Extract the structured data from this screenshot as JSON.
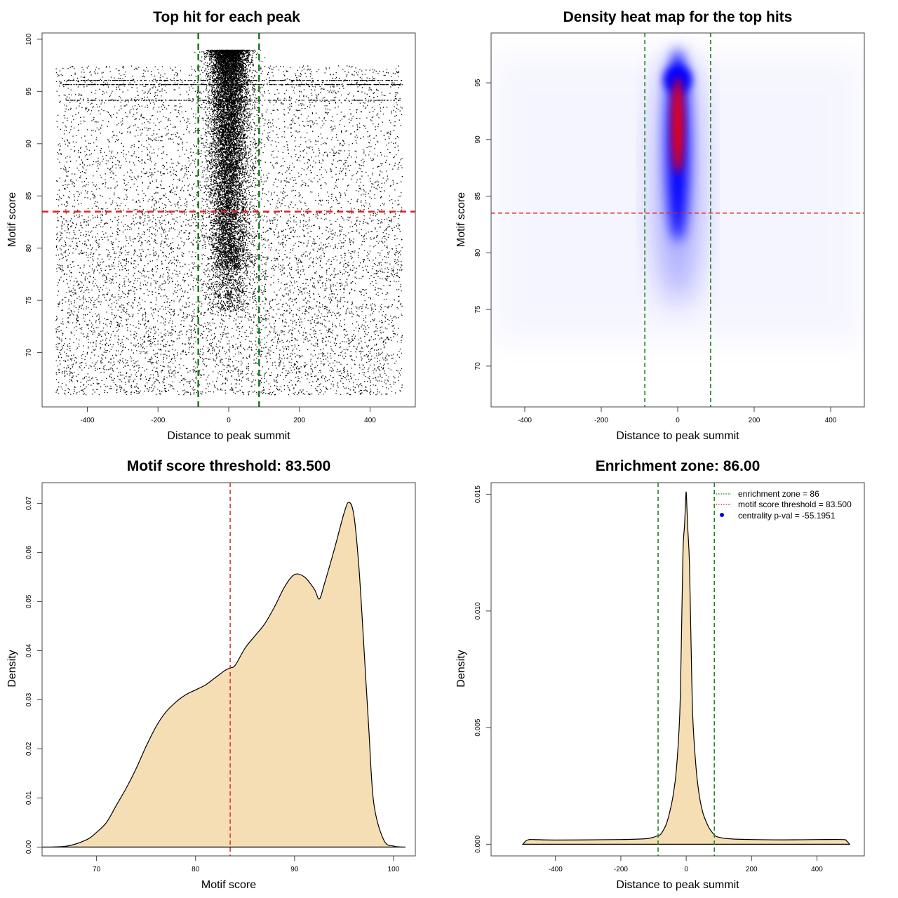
{
  "chart_data": [
    {
      "id": "scatter",
      "type": "scatter",
      "title": "Top hit for each peak",
      "xlabel": "Distance to peak summit",
      "ylabel": "Motif score",
      "xlim": [
        -528,
        528
      ],
      "ylim": [
        64.8,
        100.6
      ],
      "xticks": [
        -400,
        -200,
        0,
        200,
        400
      ],
      "yticks": [
        70,
        75,
        80,
        85,
        90,
        95,
        100
      ],
      "vlines": [
        {
          "x": -86,
          "color": "#1a7a1a"
        },
        {
          "x": 86,
          "color": "#1a7a1a"
        }
      ],
      "hlines": [
        {
          "y": 83.5,
          "color": "#dd2222"
        }
      ],
      "point_groups": [
        {
          "name": "central enriched hits",
          "x_mean": 0,
          "x_sd": 28,
          "y_min": 74,
          "y_max": 99,
          "n": 11000
        },
        {
          "name": "background above threshold",
          "x_range": [
            -490,
            490
          ],
          "y_range": [
            83.5,
            97.5
          ],
          "n": 3000
        },
        {
          "name": "background below threshold",
          "x_range": [
            -490,
            490
          ],
          "y_range": [
            66,
            83.5
          ],
          "n": 5500
        },
        {
          "name": "score band 95.7",
          "x_range": [
            -470,
            490
          ],
          "y": 95.7,
          "n": 500
        },
        {
          "name": "score band 96.1",
          "x_range": [
            -470,
            490
          ],
          "y": 96.1,
          "n": 300
        },
        {
          "name": "score band 94.2",
          "x_range": [
            -470,
            490
          ],
          "y": 94.2,
          "n": 250
        }
      ]
    },
    {
      "id": "heatmap",
      "type": "heatmap",
      "title": "Density heat map for the top hits",
      "xlabel": "Distance to peak summit",
      "ylabel": "Motif score",
      "xlim": [
        -488,
        488
      ],
      "ylim": [
        66.4,
        99.4
      ],
      "xticks": [
        -400,
        -200,
        0,
        200,
        400
      ],
      "yticks": [
        70,
        75,
        80,
        85,
        90,
        95
      ],
      "vlines": [
        {
          "x": -86,
          "color": "#1a7a1a"
        },
        {
          "x": 86,
          "color": "#1a7a1a"
        }
      ],
      "hlines": [
        {
          "y": 83.5,
          "color": "#dd2222"
        }
      ],
      "colormap": [
        "#ffffff",
        "#0000ff",
        "#ff0000"
      ],
      "density_peak": {
        "x": 0,
        "y_min": 76,
        "y_max": 97,
        "y_core": [
          87,
          95.5
        ]
      }
    },
    {
      "id": "score-density",
      "type": "area",
      "title": "Motif score threshold: 83.500",
      "xlabel": "Motif score",
      "ylabel": "Density",
      "xlim": [
        64.5,
        102.2
      ],
      "ylim": [
        -0.0018,
        0.0742
      ],
      "xticks": [
        70,
        80,
        90,
        100
      ],
      "yticks": [
        0.0,
        0.01,
        0.02,
        0.03,
        0.04,
        0.05,
        0.06,
        0.07
      ],
      "ytick_labels": [
        "0.00",
        "0.01",
        "0.02",
        "0.03",
        "0.04",
        "0.05",
        "0.06",
        "0.07"
      ],
      "vlines": [
        {
          "x": 83.5,
          "color": "#cc3333"
        }
      ],
      "fill": "#f5deb3",
      "x": [
        64.5,
        67,
        69,
        70,
        71,
        72,
        73,
        74,
        75,
        76,
        77,
        78,
        79,
        80,
        81,
        82,
        83,
        83.5,
        84,
        85,
        86,
        87,
        88,
        89,
        90,
        91,
        92,
        92.5,
        93,
        94,
        95,
        95.5,
        96,
        96.5,
        97,
        97.5,
        98,
        99,
        100,
        101.2
      ],
      "y": [
        0,
        0.0002,
        0.0015,
        0.003,
        0.005,
        0.0085,
        0.012,
        0.016,
        0.0205,
        0.0245,
        0.0275,
        0.0295,
        0.031,
        0.032,
        0.033,
        0.0345,
        0.036,
        0.0365,
        0.037,
        0.0405,
        0.043,
        0.0455,
        0.049,
        0.053,
        0.0555,
        0.055,
        0.0525,
        0.0505,
        0.0535,
        0.0605,
        0.068,
        0.0702,
        0.0675,
        0.057,
        0.041,
        0.024,
        0.009,
        0.0015,
        0.0002,
        0
      ]
    },
    {
      "id": "distance-density",
      "type": "area",
      "title": "Enrichment zone: 86.00",
      "xlabel": "Distance to peak summit",
      "ylabel": "Density",
      "xlim": [
        -597,
        545
      ],
      "ylim": [
        -0.0005,
        0.0155
      ],
      "xticks": [
        -400,
        -200,
        0,
        200,
        400
      ],
      "yticks": [
        0.0,
        0.005,
        0.01,
        0.015
      ],
      "ytick_labels": [
        "0.000",
        "0.005",
        "0.010",
        "0.015"
      ],
      "vlines": [
        {
          "x": -86,
          "color": "#1a7a1a"
        },
        {
          "x": 86,
          "color": "#1a7a1a"
        }
      ],
      "fill": "#f5deb3",
      "x": [
        -500,
        -490,
        -480,
        -470,
        -400,
        -300,
        -200,
        -150,
        -120,
        -100,
        -90,
        -80,
        -70,
        -60,
        -50,
        -40,
        -30,
        -20,
        -15,
        -10,
        -5,
        -2,
        0,
        2,
        5,
        10,
        15,
        20,
        30,
        40,
        50,
        60,
        70,
        80,
        90,
        100,
        120,
        150,
        200,
        300,
        400,
        480,
        490,
        500
      ],
      "y": [
        0,
        0.00015,
        0.0002,
        0.0002,
        0.00018,
        0.00019,
        0.0002,
        0.00022,
        0.00024,
        0.0003,
        0.00035,
        0.0004,
        0.0006,
        0.0009,
        0.0014,
        0.0021,
        0.0032,
        0.0055,
        0.0085,
        0.0125,
        0.0137,
        0.0147,
        0.0151,
        0.0145,
        0.0135,
        0.012,
        0.0085,
        0.0055,
        0.0033,
        0.0021,
        0.0014,
        0.001,
        0.0007,
        0.0005,
        0.00035,
        0.0003,
        0.00025,
        0.00022,
        0.0002,
        0.00019,
        0.0002,
        0.0002,
        0.00015,
        0
      ],
      "legend": [
        {
          "label": "enrichment zone = 86",
          "color": "#1a7a1a",
          "style": "dotted-line"
        },
        {
          "label": "motif score threshold = 83.500",
          "color": "#dd2222",
          "style": "dotted-line"
        },
        {
          "label": "centrality p-val = -55.1951",
          "color": "#0000ee",
          "style": "point"
        }
      ],
      "legend_position": "top-right"
    }
  ]
}
